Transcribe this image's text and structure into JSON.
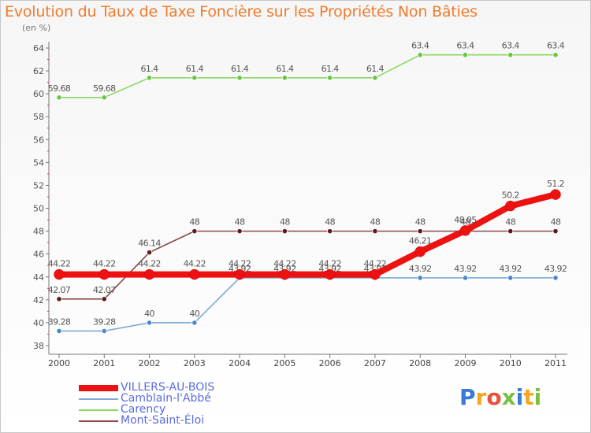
{
  "title": "Evolution du Taux de Taxe Foncière sur les Propriétés Non Bâties",
  "subtitle": "(en %)",
  "logo": {
    "text": "Proxiti",
    "letter_colors": [
      "#3a7bd5",
      "#f5a623",
      "#e8503a",
      "#7ac143",
      "#3a7bd5",
      "#f5a623",
      "#7ac143"
    ]
  },
  "chart_data": {
    "type": "line",
    "title": "Evolution du Taux de Taxe Foncière sur les Propriétés Non Bâties",
    "ylabel": "(en %)",
    "xlabel": "",
    "categories": [
      "2000",
      "2001",
      "2002",
      "2003",
      "2004",
      "2005",
      "2006",
      "2007",
      "2008",
      "2009",
      "2010",
      "2011"
    ],
    "ylim": [
      38,
      64
    ],
    "yticks": [
      38,
      40,
      42,
      44,
      46,
      48,
      50,
      52,
      54,
      56,
      58,
      60,
      62,
      64
    ],
    "grid": false,
    "legend_position": "bottom-left",
    "series": [
      {
        "name": "Carency",
        "color": "#88d860",
        "point_color": "#6cc444",
        "values": [
          59.68,
          59.68,
          61.4,
          61.4,
          61.4,
          61.4,
          61.4,
          61.4,
          63.4,
          63.4,
          63.4,
          63.4
        ],
        "labels": [
          "59.68",
          "59.68",
          "61.4",
          "61.4",
          "61.4",
          "61.4",
          "61.4",
          "61.4",
          "63.4",
          "63.4",
          "63.4",
          "63.4"
        ]
      },
      {
        "name": "Mont-Saint-Éloi",
        "color": "#8a4a4a",
        "point_color": "#5a1a1a",
        "values": [
          42.07,
          42.07,
          46.14,
          48,
          48,
          48,
          48,
          48,
          48,
          48,
          48,
          48
        ],
        "labels": [
          "42.07",
          "42.07",
          "46.14",
          "48",
          "48",
          "48",
          "48",
          "48",
          "48",
          "48",
          "48",
          "48"
        ]
      },
      {
        "name": "Camblain-l'Abbé",
        "color": "#7aaad6",
        "point_color": "#4a88c8",
        "values": [
          39.28,
          39.28,
          40,
          40,
          43.92,
          43.92,
          43.92,
          43.92,
          43.92,
          43.92,
          43.92,
          43.92
        ],
        "labels": [
          "39.28",
          "39.28",
          "40",
          "40",
          "43.92",
          "43.92",
          "43.92",
          "43.92",
          "43.92",
          "43.92",
          "43.92",
          "43.92"
        ]
      },
      {
        "name": "VILLERS-AU-BOIS",
        "color": "#ee1111",
        "point_color": "#ee1111",
        "values": [
          44.22,
          44.22,
          44.22,
          44.22,
          44.22,
          44.22,
          44.22,
          44.22,
          46.21,
          48.05,
          50.2,
          51.2
        ],
        "labels": [
          "44.22",
          "44.22",
          "44.22",
          "44.22",
          "44.22",
          "44.22",
          "44.22",
          "44.22",
          "46.21",
          "48.05",
          "50.2",
          "51.2"
        ]
      }
    ],
    "legend_order": [
      "VILLERS-AU-BOIS",
      "Camblain-l'Abbé",
      "Carency",
      "Mont-Saint-Éloi"
    ]
  }
}
